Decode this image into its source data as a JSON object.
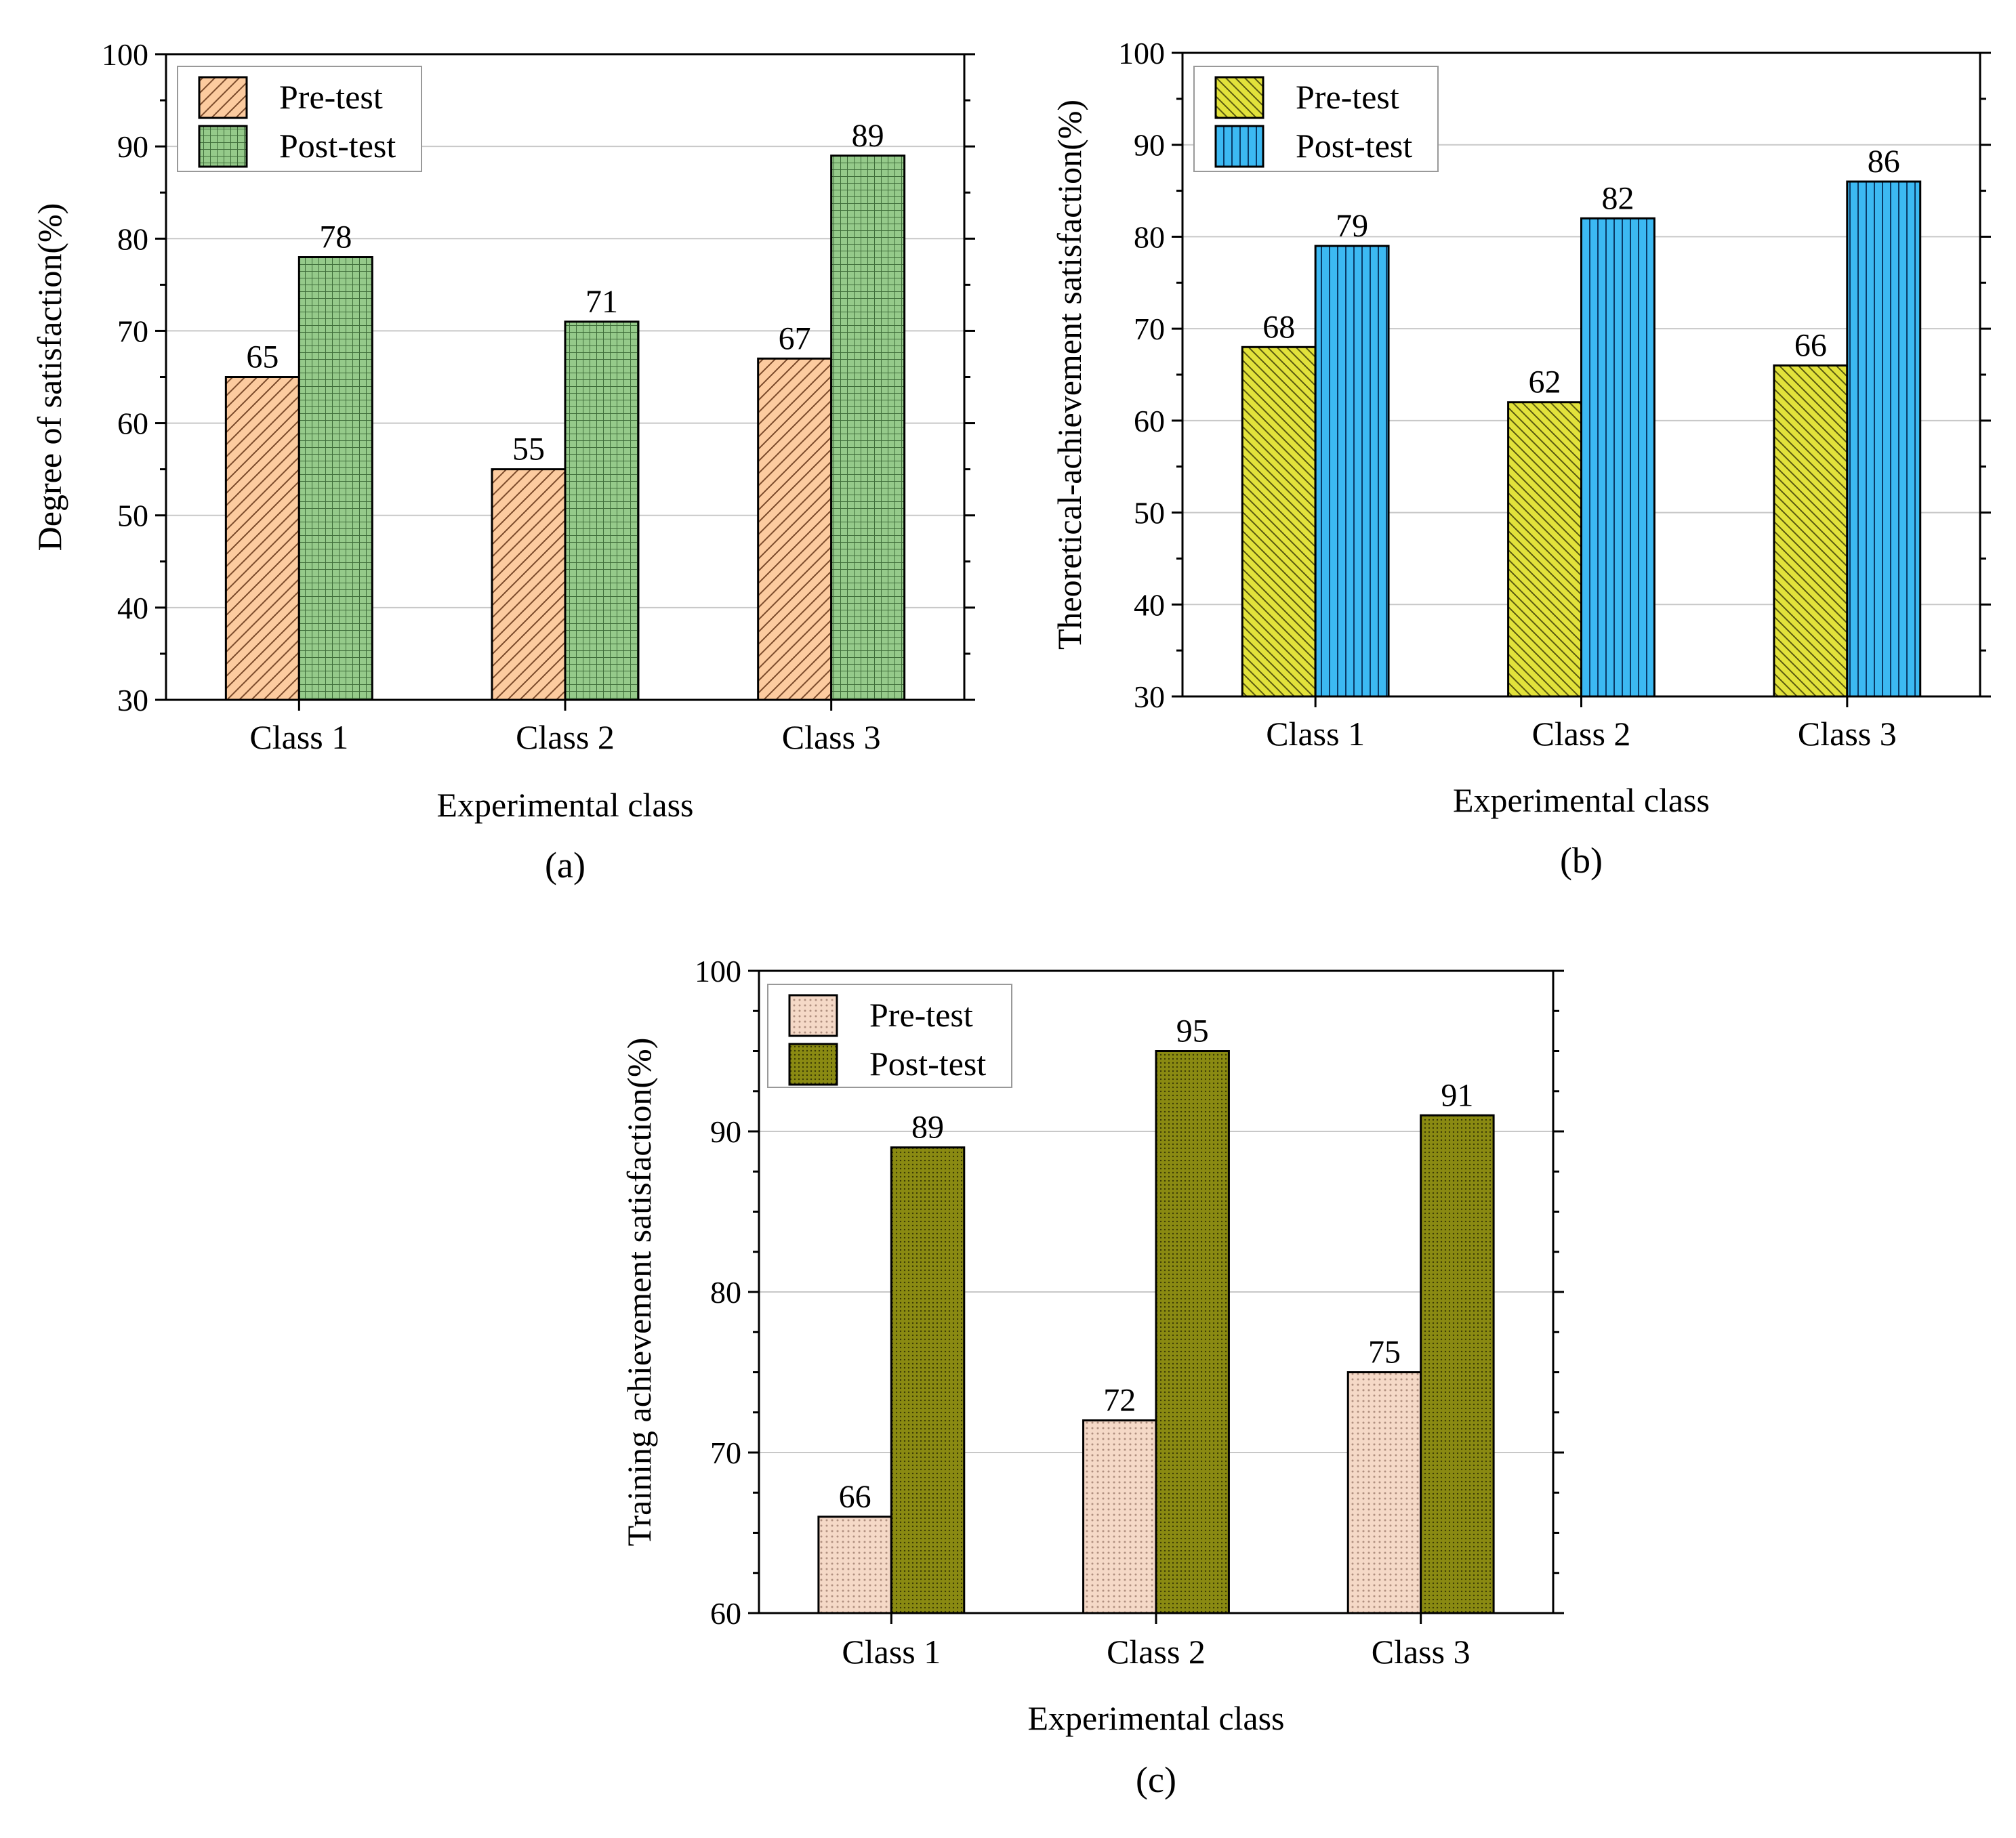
{
  "chart_data": [
    {
      "type": "bar",
      "panel_label": "(a)",
      "categories": [
        "Class 1",
        "Class 2",
        "Class 3"
      ],
      "series": [
        {
          "name": "Pre-test",
          "values": [
            65,
            55,
            67
          ],
          "color": "#fccb9f",
          "pattern": "diagonal"
        },
        {
          "name": "Post-test",
          "values": [
            78,
            71,
            89
          ],
          "color": "#95ca8a",
          "pattern": "grid"
        }
      ],
      "title": "",
      "xlabel": "Experimental class",
      "ylabel": "Degree of satisfaction(%)",
      "ylim": [
        30,
        100
      ],
      "yticks": [
        30,
        40,
        50,
        60,
        70,
        80,
        90,
        100
      ],
      "grid": true,
      "legend": "top-left"
    },
    {
      "type": "bar",
      "panel_label": "(b)",
      "categories": [
        "Class 1",
        "Class 2",
        "Class 3"
      ],
      "series": [
        {
          "name": "Pre-test",
          "values": [
            68,
            62,
            66
          ],
          "color": "#e2e23b",
          "pattern": "diagonal-back"
        },
        {
          "name": "Post-test",
          "values": [
            79,
            82,
            86
          ],
          "color": "#3cb9f2",
          "pattern": "vertical"
        }
      ],
      "title": "",
      "xlabel": "Experimental class",
      "ylabel": "Theoretical-achievement satisfaction(%)",
      "ylim": [
        30,
        100
      ],
      "yticks": [
        30,
        40,
        50,
        60,
        70,
        80,
        90,
        100
      ],
      "grid": true,
      "legend": "top-left"
    },
    {
      "type": "bar",
      "panel_label": "(c)",
      "categories": [
        "Class 1",
        "Class 2",
        "Class 3"
      ],
      "series": [
        {
          "name": "Pre-test",
          "values": [
            66,
            72,
            75
          ],
          "color": "#f5d9c7",
          "pattern": "dots"
        },
        {
          "name": "Post-test",
          "values": [
            89,
            95,
            91
          ],
          "color": "#8a8a12",
          "pattern": "dense"
        }
      ],
      "title": "",
      "xlabel": "Experimental class",
      "ylabel": "Training achievement satisfaction(%)",
      "ylim": [
        60,
        100
      ],
      "yticks": [
        60,
        70,
        80,
        90,
        100
      ],
      "grid": true,
      "legend": "top-left"
    }
  ]
}
